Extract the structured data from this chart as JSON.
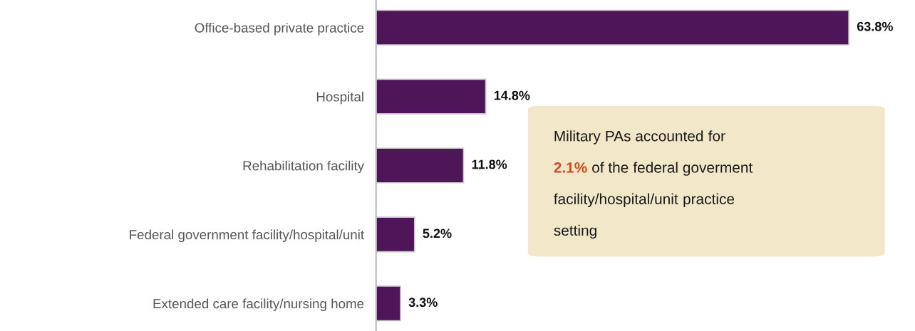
{
  "chart_data": {
    "type": "bar",
    "orientation": "horizontal",
    "categories": [
      "Office-based private practice",
      "Hospital",
      "Rehabilitation facility",
      "Federal government facility/hospital/unit",
      "Extended care facility/nursing home"
    ],
    "values": [
      63.8,
      14.8,
      11.8,
      5.2,
      3.3
    ],
    "value_labels": [
      "63.8%",
      "14.8%",
      "11.8%",
      "5.2%",
      "3.3%"
    ],
    "color": "#4f1559",
    "grid": false,
    "annotations": [
      "Military PAs accounted for\n2.1% of the federal goverment\nfacility/hospital/unit practice\nsetting"
    ]
  }
}
